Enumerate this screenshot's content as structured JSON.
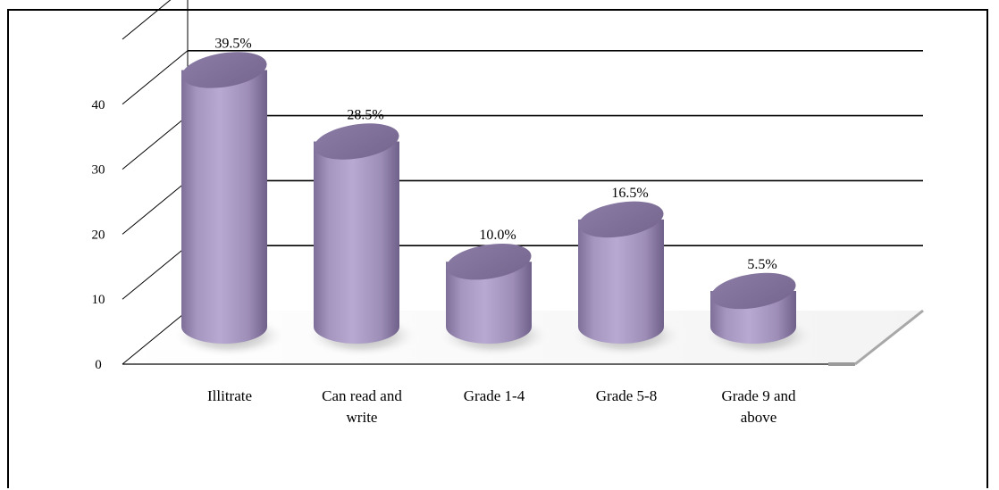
{
  "chart_data": {
    "type": "bar",
    "style": "3d-cylinder",
    "title": "",
    "xlabel": "",
    "ylabel": "",
    "categories": [
      "Illitrate",
      "Can read and write",
      "Grade 1-4",
      "Grade 5-8",
      "Grade 9 and above"
    ],
    "category_lines": [
      [
        "Illitrate"
      ],
      [
        "Can read and",
        "write"
      ],
      [
        "Grade 1-4"
      ],
      [
        "Grade 5-8"
      ],
      [
        "Grade 9 and",
        "above"
      ]
    ],
    "values": [
      39.5,
      28.5,
      10.0,
      16.5,
      5.5
    ],
    "data_labels": [
      "39.5%",
      "28.5%",
      "10.0%",
      "16.5%",
      "5.5%"
    ],
    "ylim": [
      0,
      50
    ],
    "yticks": [
      0,
      10,
      20,
      30,
      40
    ],
    "grid": true,
    "legend": "none",
    "bar_color": "#a99bc3"
  }
}
